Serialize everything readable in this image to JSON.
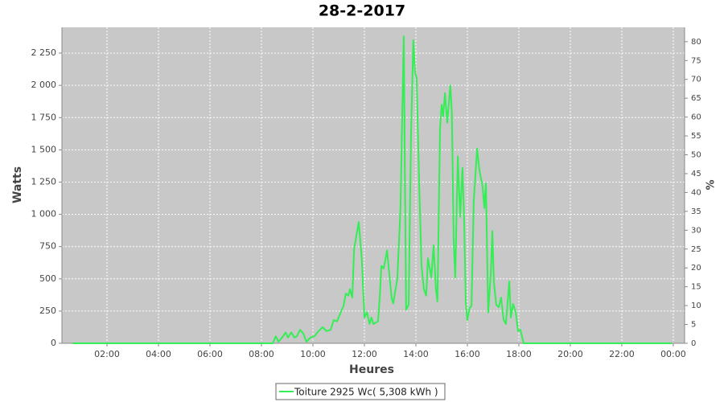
{
  "chart_data": {
    "type": "line",
    "title": "28-2-2017",
    "xlabel": "Heures",
    "ylabel": "Watts",
    "y2label": "%",
    "x": [
      0.66,
      8.44,
      8.56,
      8.66,
      8.84,
      8.94,
      9.03,
      9.16,
      9.28,
      9.38,
      9.5,
      9.63,
      9.75,
      9.9,
      10.06,
      10.22,
      10.38,
      10.53,
      10.69,
      10.81,
      10.94,
      11.06,
      11.19,
      11.28,
      11.38,
      11.44,
      11.53,
      11.6,
      11.78,
      11.9,
      12.0,
      12.1,
      12.2,
      12.27,
      12.35,
      12.53,
      12.6,
      12.66,
      12.75,
      12.88,
      13.06,
      13.12,
      13.28,
      13.4,
      13.53,
      13.62,
      13.72,
      13.81,
      13.9,
      13.97,
      14.03,
      14.13,
      14.22,
      14.31,
      14.4,
      14.47,
      14.6,
      14.69,
      14.78,
      14.84,
      14.94,
      15.0,
      15.06,
      15.13,
      15.22,
      15.34,
      15.4,
      15.47,
      15.53,
      15.63,
      15.72,
      15.81,
      15.88,
      15.94,
      16.0,
      16.09,
      16.16,
      16.25,
      16.38,
      16.47,
      16.59,
      16.66,
      16.72,
      16.81,
      16.91,
      16.97,
      17.03,
      17.12,
      17.22,
      17.31,
      17.41,
      17.5,
      17.63,
      17.69,
      17.78,
      17.88,
      17.97,
      18.06,
      18.19,
      23.94
    ],
    "series": [
      {
        "name": "Toiture 2925 Wc( 5,308 kWh )",
        "color": "#33ee55",
        "values": [
          0,
          0,
          55,
          12,
          55,
          85,
          45,
          85,
          45,
          55,
          105,
          75,
          12,
          45,
          55,
          95,
          125,
          95,
          105,
          180,
          170,
          230,
          290,
          385,
          370,
          420,
          355,
          730,
          940,
          650,
          200,
          240,
          150,
          200,
          150,
          170,
          370,
          600,
          580,
          720,
          350,
          310,
          500,
          1040,
          2380,
          260,
          300,
          1600,
          2350,
          2100,
          2060,
          1230,
          600,
          420,
          370,
          660,
          510,
          760,
          420,
          325,
          1660,
          1850,
          1760,
          1940,
          1710,
          2000,
          1790,
          790,
          510,
          1450,
          980,
          1360,
          920,
          320,
          180,
          275,
          290,
          1100,
          1510,
          1340,
          1220,
          1050,
          1240,
          240,
          540,
          870,
          480,
          300,
          280,
          355,
          180,
          150,
          480,
          200,
          305,
          240,
          95,
          105,
          0,
          0
        ]
      }
    ],
    "xlim": [
      0.25,
      24.44
    ],
    "ylim": [
      0,
      2450
    ],
    "y2lim": [
      0,
      83.8
    ],
    "xticks": [
      {
        "value": 2,
        "label": "02:00"
      },
      {
        "value": 4,
        "label": "04:00"
      },
      {
        "value": 6,
        "label": "06:00"
      },
      {
        "value": 8,
        "label": "08:00"
      },
      {
        "value": 10,
        "label": "10:00"
      },
      {
        "value": 12,
        "label": "12:00"
      },
      {
        "value": 14,
        "label": "14:00"
      },
      {
        "value": 16,
        "label": "16:00"
      },
      {
        "value": 18,
        "label": "18:00"
      },
      {
        "value": 20,
        "label": "20:00"
      },
      {
        "value": 22,
        "label": "22:00"
      },
      {
        "value": 24,
        "label": "00:00"
      }
    ],
    "yticks": [
      0,
      250,
      500,
      750,
      {
        "value": 1000,
        "label": "1 000"
      },
      {
        "value": 1250,
        "label": "1 250"
      },
      {
        "value": 1500,
        "label": "1 500"
      },
      {
        "value": 1750,
        "label": "1 750"
      },
      {
        "value": 2000,
        "label": "2 000"
      },
      {
        "value": 2250,
        "label": "2 250"
      }
    ],
    "y2ticks": [
      0,
      5,
      10,
      15,
      20,
      25,
      30,
      35,
      40,
      45,
      50,
      55,
      60,
      65,
      70,
      75,
      80
    ],
    "grid": true
  }
}
